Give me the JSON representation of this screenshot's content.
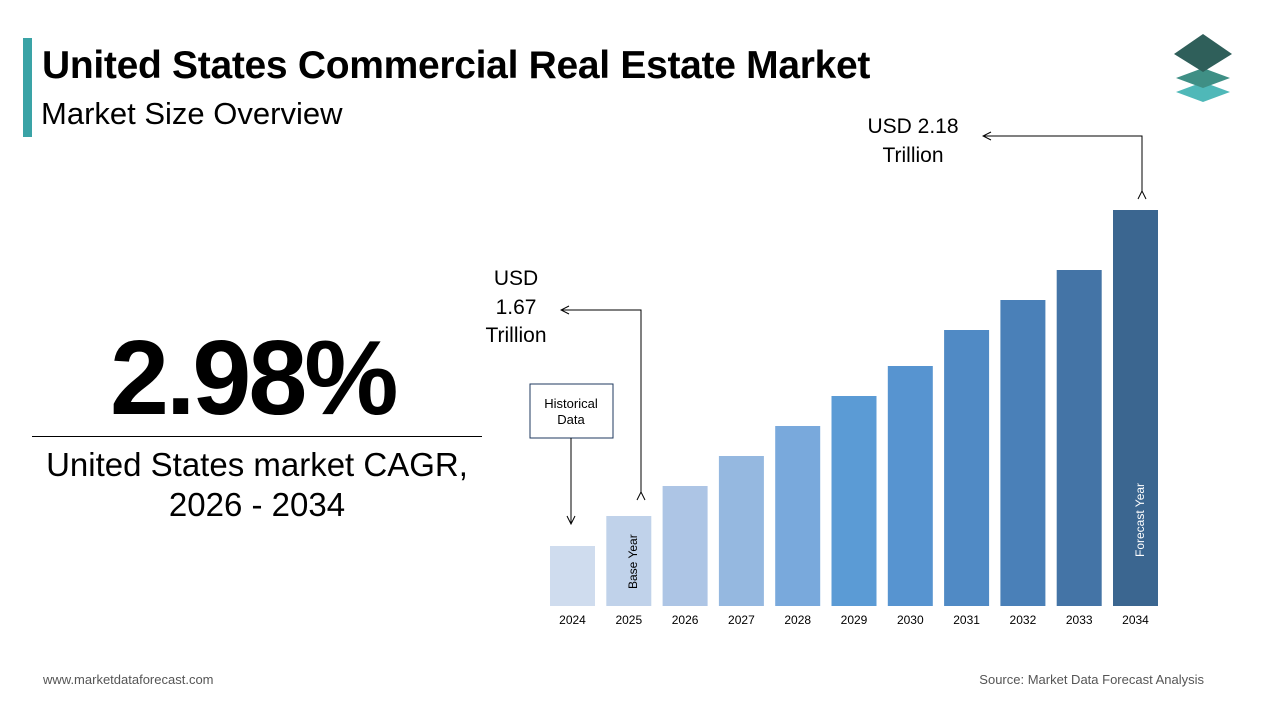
{
  "header": {
    "title": "United States Commercial Real Estate Market",
    "subtitle": "Market Size Overview"
  },
  "logo": {
    "icon": "stacked-layers-logo",
    "colors": [
      "#2f5f5a",
      "#3f8f85",
      "#4fb8b8"
    ]
  },
  "cagr": {
    "value": "2.98%",
    "label_line1": "United States market CAGR,",
    "label_line2": "2026 - 2034"
  },
  "callouts": {
    "start": {
      "line1": "USD",
      "line2": "1.67",
      "line3": "Trillion"
    },
    "end": {
      "line1": "USD 2.18",
      "line2": "Trillion"
    },
    "historical": {
      "line1": "Historical",
      "line2": "Data"
    },
    "base_year": "Base Year",
    "forecast_year": "Forecast Year"
  },
  "footer": {
    "website": "www.marketdataforecast.com",
    "source": "Source: Market Data Forecast Analysis"
  },
  "chart_data": {
    "type": "bar",
    "categories": [
      "2024",
      "2025",
      "2026",
      "2027",
      "2028",
      "2029",
      "2030",
      "2031",
      "2032",
      "2033",
      "2034"
    ],
    "values": [
      1.62,
      1.67,
      1.72,
      1.77,
      1.82,
      1.87,
      1.92,
      1.98,
      2.03,
      2.08,
      2.18
    ],
    "unit": "USD Trillion",
    "title": "",
    "xlabel": "",
    "ylabel": "",
    "ylim": [
      1.52,
      2.18
    ],
    "grid": false,
    "legend": "none",
    "colors": [
      "#cfdcee",
      "#c0d2ea",
      "#adc5e5",
      "#95b8e0",
      "#79a9dc",
      "#5b9bd5",
      "#5794d0",
      "#508ac5",
      "#4a80b8",
      "#4474a6",
      "#3b6690"
    ]
  }
}
